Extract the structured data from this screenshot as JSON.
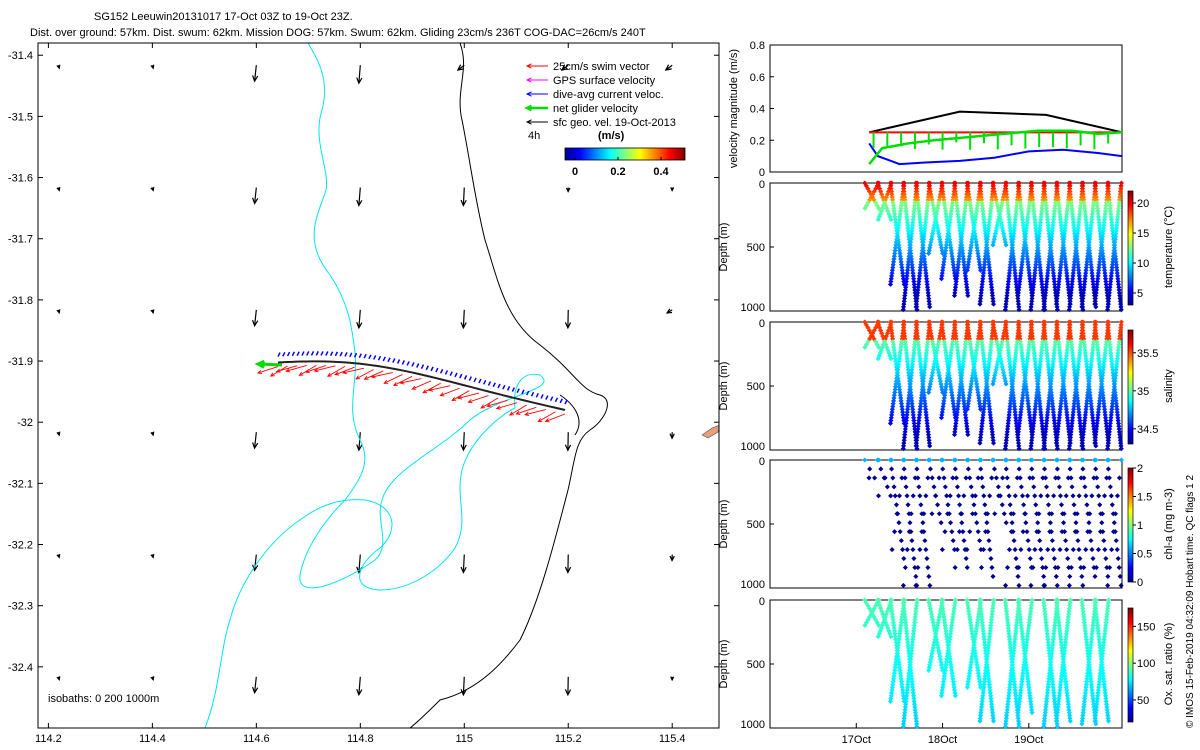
{
  "header": {
    "line1": "SG152 Leeuwin20131017 17-Oct 03Z to 19-Oct 23Z.",
    "line2": "Dist. over ground: 57km. Dist. swum: 62km. Mission DOG: 57km. Swum: 62km. Gliding 23cm/s 236T COG-DAC=26cm/s 240T"
  },
  "colors": {
    "swim": "#ff0000",
    "gps": "#ff00ff",
    "dac": "#0000ff",
    "net": "#00dd00",
    "geo": "#000000",
    "isobath200": "#00e5ee",
    "isobath1000": "#000000",
    "track": "#222222"
  },
  "icons": {
    "land": "island-shape"
  },
  "map": {
    "xticks": [
      114.2,
      114.4,
      114.6,
      114.8,
      115,
      115.2,
      115.4
    ],
    "yticks": [
      -31.4,
      -31.5,
      -31.6,
      -31.7,
      -31.8,
      -31.9,
      -32,
      -32.1,
      -32.2,
      -32.3,
      -32.4
    ],
    "xlim": [
      114.18,
      115.49
    ],
    "ylim": [
      -32.5,
      -31.38
    ],
    "isobath_label": "isobaths: 0   200  1000m",
    "legend": {
      "items": [
        {
          "key": "swim",
          "label": "25cm/s swim vector"
        },
        {
          "key": "gps",
          "label": "GPS surface velocity"
        },
        {
          "key": "dac",
          "label": "dive-avg current veloc."
        },
        {
          "key": "net",
          "label": "net glider velocity"
        },
        {
          "key": "geo",
          "label": "sfc geo. vel. 19-Oct-2013"
        }
      ],
      "time_label": "4h",
      "units": "(m/s)",
      "colorbar_ticks": [
        "0",
        "0.2",
        "0.4"
      ]
    }
  },
  "chart_data": [
    {
      "type": "line",
      "ylabel": "velocity magnitude (m/s)",
      "ylim": [
        0,
        0.8
      ],
      "yticks": [
        0,
        0.2,
        0.4,
        0.6,
        0.8
      ],
      "x_label_days": [
        17,
        18,
        19
      ],
      "xtick_labels": [
        "17Oct",
        "18Oct",
        "19Oct"
      ],
      "xlim": [
        16.0,
        20.08
      ],
      "series": [
        {
          "key": "geo",
          "x": [
            17.15,
            18.2,
            19.2,
            20.08
          ],
          "y": [
            0.25,
            0.38,
            0.36,
            0.25
          ]
        },
        {
          "key": "swim",
          "x": [
            17.15,
            20.08
          ],
          "y": [
            0.25,
            0.25
          ]
        },
        {
          "key": "dac",
          "x": [
            17.15,
            17.25,
            17.5,
            17.8,
            18.2,
            18.6,
            19.0,
            19.4,
            19.8,
            20.08
          ],
          "y": [
            0.18,
            0.1,
            0.05,
            0.06,
            0.07,
            0.09,
            0.13,
            0.14,
            0.12,
            0.1
          ]
        },
        {
          "key": "net",
          "x": [
            17.15,
            17.3,
            17.6,
            17.9,
            18.3,
            18.7,
            19.1,
            19.5,
            19.8,
            20.08
          ],
          "y": [
            0.05,
            0.15,
            0.18,
            0.2,
            0.22,
            0.24,
            0.26,
            0.26,
            0.24,
            0.25
          ]
        }
      ]
    },
    {
      "type": "scatter",
      "ylabel": "Depth (m)",
      "colorbar_label": "temperature (°C)",
      "colorbar_ticks": [
        5,
        10,
        15,
        20
      ],
      "clim": [
        3,
        22
      ],
      "ylim": [
        1000,
        0
      ],
      "yticks": [
        0,
        500,
        1000
      ]
    },
    {
      "type": "scatter",
      "ylabel": "Depth (m)",
      "colorbar_label": "salinity",
      "colorbar_ticks": [
        34.5,
        35,
        35.5
      ],
      "clim": [
        34.3,
        35.8
      ],
      "ylim": [
        1000,
        0
      ],
      "yticks": [
        0,
        500,
        1000
      ]
    },
    {
      "type": "scatter",
      "ylabel": "Depth (m)",
      "colorbar_label": "chl-a (mg m-3)",
      "colorbar_ticks": [
        0,
        0.5,
        1,
        1.5,
        2
      ],
      "clim": [
        0,
        2
      ],
      "ylim": [
        1000,
        0
      ],
      "yticks": [
        0,
        500,
        1000
      ]
    },
    {
      "type": "scatter",
      "ylabel": "Depth (m)",
      "colorbar_label": "Ox. sat. ratio (%)",
      "colorbar_ticks": [
        50,
        100,
        150
      ],
      "clim": [
        20,
        175
      ],
      "ylim": [
        1000,
        0
      ],
      "yticks": [
        0,
        500,
        1000
      ]
    }
  ],
  "footer": {
    "side_note": "© IMOS 15-Feb-2019 04:32:09 Hobart time. QC flags 1  2"
  }
}
